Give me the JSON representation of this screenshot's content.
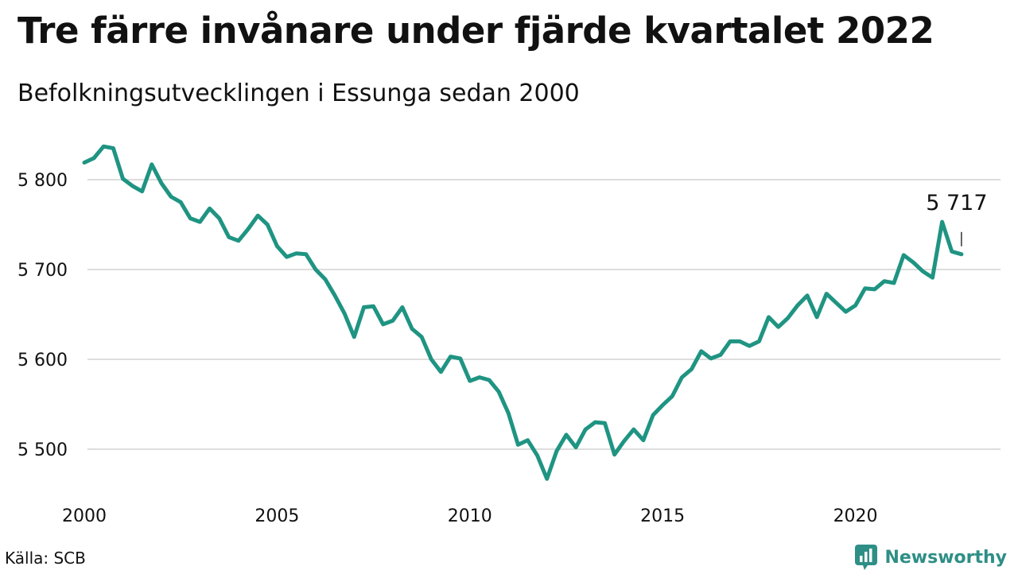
{
  "title": "Tre färre invånare under fjärde kvartalet 2022",
  "subtitle": "Befolkningsutvecklingen i Essunga sedan 2000",
  "source": "Källa: SCB",
  "brand": {
    "name": "Newsworthy",
    "icon": "newsworthy-logo-icon",
    "color": "#2e8f86"
  },
  "colors": {
    "line": "#1f9482",
    "grid": "#dddddd",
    "text": "#111111"
  },
  "chart_data": {
    "type": "line",
    "title": "Tre färre invånare under fjärde kvartalet 2022",
    "subtitle": "Befolkningsutvecklingen i Essunga sedan 2000",
    "xlabel": "",
    "ylabel": "",
    "xlim": [
      2000,
      2023
    ],
    "ylim": [
      5450,
      5850
    ],
    "x_ticks": [
      2000,
      2005,
      2010,
      2015,
      2020
    ],
    "x_tick_labels": [
      "2000",
      "2005",
      "2010",
      "2015",
      "2020"
    ],
    "y_ticks": [
      5500,
      5600,
      5700,
      5800
    ],
    "y_tick_labels": [
      "5 500",
      "5 600",
      "5 700",
      "5 800"
    ],
    "grid": "horizontal",
    "annotation": {
      "label": "5 717",
      "x": 2022.75,
      "y": 5717
    },
    "series": [
      {
        "x": [
          2000.0,
          2000.25,
          2000.5,
          2000.75,
          2001.0,
          2001.25,
          2001.5,
          2001.75,
          2002.0,
          2002.25,
          2002.5,
          2002.75,
          2003.0,
          2003.25,
          2003.5,
          2003.75,
          2004.0,
          2004.25,
          2004.5,
          2004.75,
          2005.0,
          2005.25,
          2005.5,
          2005.75,
          2006.0,
          2006.25,
          2006.5,
          2006.75,
          2007.0,
          2007.25,
          2007.5,
          2007.75,
          2008.0,
          2008.25,
          2008.5,
          2008.75,
          2009.0,
          2009.25,
          2009.5,
          2009.75,
          2010.0,
          2010.25,
          2010.5,
          2010.75,
          2011.0,
          2011.25,
          2011.5,
          2011.75,
          2012.0,
          2012.25,
          2012.5,
          2012.75,
          2013.0,
          2013.25,
          2013.5,
          2013.75,
          2014.0,
          2014.25,
          2014.5,
          2014.75,
          2015.0,
          2015.25,
          2015.5,
          2015.75,
          2016.0,
          2016.25,
          2016.5,
          2016.75,
          2017.0,
          2017.25,
          2017.5,
          2017.75,
          2018.0,
          2018.25,
          2018.5,
          2018.75,
          2019.0,
          2019.25,
          2019.5,
          2019.75,
          2020.0,
          2020.25,
          2020.5,
          2020.75,
          2021.0,
          2021.25,
          2021.5,
          2021.75,
          2022.0,
          2022.25,
          2022.5,
          2022.75
        ],
        "values": [
          5819,
          5824,
          5837,
          5835,
          5801,
          5793,
          5787,
          5817,
          5796,
          5781,
          5775,
          5757,
          5753,
          5768,
          5757,
          5736,
          5732,
          5745,
          5760,
          5750,
          5726,
          5714,
          5718,
          5717,
          5700,
          5689,
          5671,
          5651,
          5625,
          5658,
          5659,
          5639,
          5643,
          5658,
          5634,
          5625,
          5600,
          5586,
          5603,
          5601,
          5576,
          5580,
          5577,
          5564,
          5540,
          5505,
          5510,
          5493,
          5467,
          5498,
          5516,
          5502,
          5522,
          5530,
          5529,
          5494,
          5509,
          5522,
          5510,
          5538,
          5549,
          5559,
          5580,
          5589,
          5609,
          5601,
          5605,
          5620,
          5620,
          5615,
          5620,
          5647,
          5636,
          5646,
          5660,
          5671,
          5647,
          5673,
          5663,
          5653,
          5660,
          5679,
          5678,
          5687,
          5685,
          5716,
          5708,
          5698,
          5691,
          5753,
          5720,
          5717
        ]
      }
    ]
  }
}
